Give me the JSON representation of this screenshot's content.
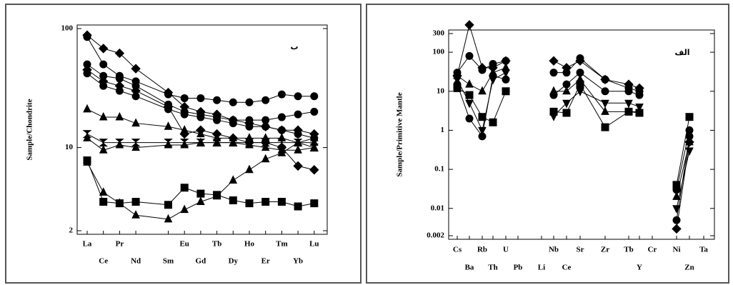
{
  "chart_data": [
    {
      "type": "line",
      "log_y": true,
      "ylabel": "Sample/Chondrite",
      "annotation": "ب",
      "color": "#000000",
      "categories": [
        "La",
        "Ce",
        "Pr",
        "Nd",
        "Sm",
        "Eu",
        "Gd",
        "Tb",
        "Dy",
        "Ho",
        "Er",
        "Tm",
        "Yb",
        "Lu"
      ],
      "ylim": [
        2,
        100
      ],
      "yticks": [
        2,
        10,
        100
      ],
      "series": [
        {
          "marker": "diamond",
          "values": [
            88,
            68,
            62,
            46,
            29,
            22,
            20,
            19,
            17,
            16,
            15,
            14,
            14,
            13
          ]
        },
        {
          "marker": "circle",
          "values": [
            85,
            50,
            40,
            36,
            28,
            26,
            26,
            25,
            24,
            24,
            25,
            28,
            27,
            27
          ]
        },
        {
          "marker": "circle",
          "values": [
            50,
            40,
            38,
            33,
            23,
            20,
            19,
            18,
            17,
            17,
            17,
            18,
            19,
            20
          ]
        },
        {
          "marker": "diamond",
          "values": [
            45,
            36,
            33,
            30,
            22,
            13,
            14,
            13,
            12,
            11,
            11,
            10,
            7,
            6.5
          ]
        },
        {
          "marker": "circle",
          "values": [
            42,
            33,
            30,
            27,
            21,
            19,
            18,
            17,
            16,
            15,
            15,
            14,
            13,
            12
          ]
        },
        {
          "marker": "triangle",
          "values": [
            21,
            18,
            18,
            16,
            15,
            14,
            13,
            12,
            12,
            12,
            12,
            12,
            11,
            11
          ]
        },
        {
          "marker": "hourglass",
          "values": [
            13,
            11,
            11,
            11,
            11,
            11,
            11,
            11,
            11,
            11,
            11,
            11,
            11,
            10
          ]
        },
        {
          "marker": "triangle",
          "values": [
            12,
            9.5,
            10.5,
            10,
            10.5,
            10.5,
            11,
            11,
            11,
            10.5,
            10,
            9.5,
            9.5,
            10
          ]
        },
        {
          "marker": "square",
          "values": [
            7.8,
            3.5,
            3.4,
            3.5,
            3.3,
            4.6,
            4.1,
            4,
            3.6,
            3.4,
            3.5,
            3.5,
            3.2,
            3.4
          ]
        },
        {
          "marker": "triangle",
          "values": [
            7.5,
            4.2,
            3.4,
            2.7,
            2.5,
            3,
            3.5,
            3.9,
            5.3,
            6.5,
            8,
            9,
            11,
            12
          ]
        }
      ]
    },
    {
      "type": "line",
      "log_y": true,
      "ylabel": "Sample/Primitive Mantle",
      "annotation": "الف",
      "color": "#000000",
      "categories": [
        "Cs",
        "Ba",
        "Rb",
        "Th",
        "U",
        "Pb",
        "Li",
        "Nb",
        "Ce",
        "Sr",
        "Zr",
        "Tb",
        "Y",
        "Cr",
        "Ni",
        "Zn",
        "Ta"
      ],
      "ylim": [
        0.002,
        300
      ],
      "yticks": [
        0.002,
        0.01,
        0.1,
        1,
        10,
        100,
        300
      ],
      "series": [
        {
          "marker": "diamond",
          "values": [
            25,
            500,
            40,
            40,
            60,
            null,
            null,
            60,
            40,
            60,
            20,
            15,
            12,
            null,
            0.003,
            0.5,
            null
          ]
        },
        {
          "marker": "circle",
          "values": [
            30,
            80,
            35,
            50,
            60,
            null,
            null,
            30,
            30,
            70,
            20,
            12,
            10,
            null,
            0.03,
            1,
            null
          ]
        },
        {
          "marker": "square",
          "values": [
            12,
            8,
            2.2,
            1.6,
            10,
            null,
            null,
            3,
            2.8,
            15,
            1.2,
            3,
            2.8,
            null,
            0.04,
            2.2,
            null
          ]
        },
        {
          "marker": "tridown",
          "values": [
            20,
            5,
            1,
            20,
            30,
            null,
            null,
            2.3,
            5,
            10,
            5,
            5,
            4,
            null,
            0.01,
            0.3,
            null
          ]
        },
        {
          "marker": "triangle",
          "values": [
            25,
            15,
            10,
            30,
            40,
            null,
            null,
            10,
            10,
            20,
            3,
            3,
            3,
            null,
            0.02,
            0.5,
            null
          ]
        },
        {
          "marker": "circle",
          "values": [
            15,
            2,
            0.7,
            25,
            20,
            null,
            null,
            8,
            15,
            30,
            10,
            10,
            8,
            null,
            0.005,
            0.7,
            null
          ]
        }
      ]
    }
  ]
}
